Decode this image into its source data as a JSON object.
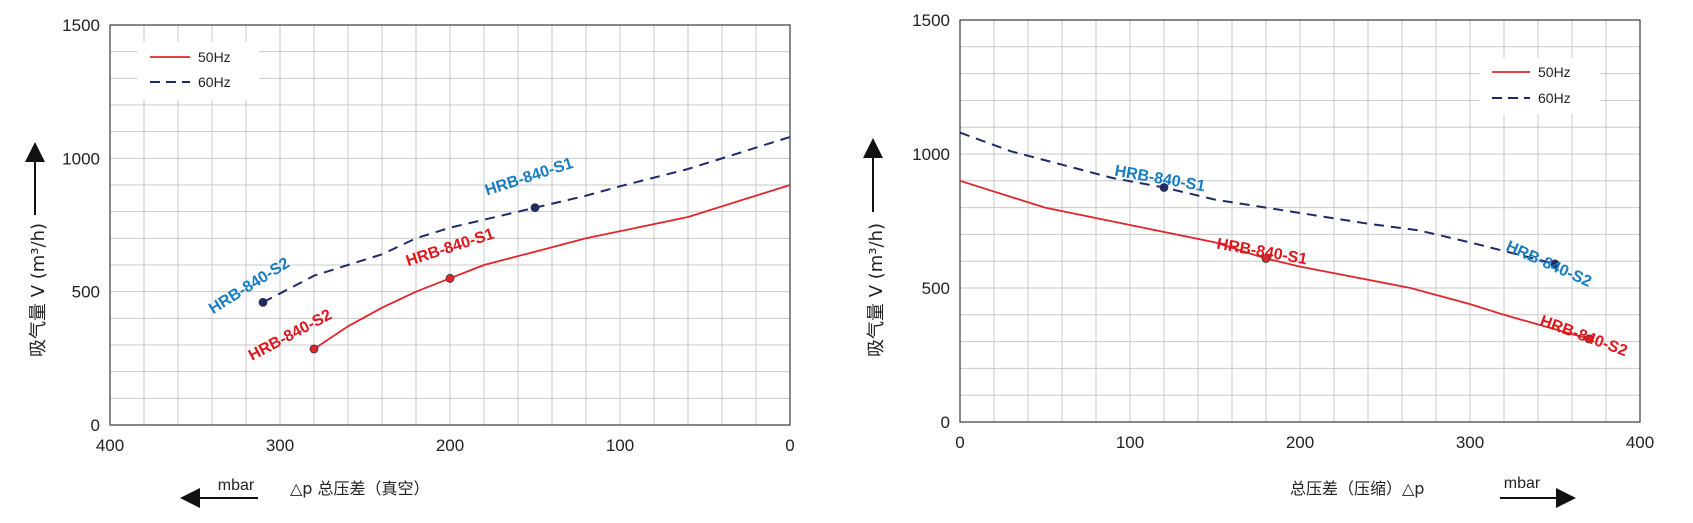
{
  "colors": {
    "hz50": "#e0262b",
    "hz60": "#1f2a6b",
    "label50": "#e0161c",
    "label60": "#1a7cc0"
  },
  "chart_data": [
    {
      "type": "line",
      "xlabel": "△p  总压差（真空）",
      "x_unit": "mbar",
      "ylabel": "吸气量 V (m³/h)",
      "xlim": [
        400,
        0
      ],
      "ylim": [
        0,
        1500
      ],
      "x_ticks": [
        "400",
        "300",
        "200",
        "100",
        "0"
      ],
      "y_ticks": [
        "0",
        "500",
        "1000",
        "1500"
      ],
      "grid": true,
      "legend": {
        "position": "top-left",
        "entries": [
          "50Hz",
          "60Hz"
        ]
      },
      "series": [
        {
          "name": "50Hz",
          "style": "solid",
          "x": [
            280,
            260,
            240,
            220,
            200,
            180,
            150,
            120,
            60,
            0
          ],
          "y": [
            285,
            370,
            440,
            500,
            550,
            600,
            650,
            700,
            780,
            900
          ]
        },
        {
          "name": "60Hz",
          "style": "dashed",
          "x": [
            310,
            280,
            260,
            240,
            220,
            200,
            180,
            150,
            120,
            100,
            60,
            0
          ],
          "y": [
            460,
            560,
            600,
            640,
            700,
            740,
            770,
            815,
            860,
            895,
            960,
            1080
          ]
        }
      ],
      "points": [
        {
          "label": "HRB-840-S1",
          "series": "60Hz",
          "x": 150,
          "y": 815
        },
        {
          "label": "HRB-840-S2",
          "series": "60Hz",
          "x": 310,
          "y": 460
        },
        {
          "label": "HRB-840-S1",
          "series": "50Hz",
          "x": 200,
          "y": 550
        },
        {
          "label": "HRB-840-S2",
          "series": "50Hz",
          "x": 280,
          "y": 285
        }
      ]
    },
    {
      "type": "line",
      "xlabel": "总压差（压缩）△p",
      "x_unit": "mbar",
      "ylabel": "吸气量 V (m³/h)",
      "xlim": [
        0,
        400
      ],
      "ylim": [
        0,
        1500
      ],
      "x_ticks": [
        "0",
        "100",
        "200",
        "300",
        "400"
      ],
      "y_ticks": [
        "0",
        "500",
        "1000",
        "1500"
      ],
      "grid": true,
      "legend": {
        "position": "top-right",
        "entries": [
          "50Hz",
          "60Hz"
        ]
      },
      "series": [
        {
          "name": "50Hz",
          "style": "solid",
          "x": [
            0,
            50,
            100,
            150,
            180,
            200,
            265,
            300,
            320,
            370
          ],
          "y": [
            900,
            800,
            735,
            670,
            610,
            580,
            500,
            440,
            400,
            310
          ]
        },
        {
          "name": "60Hz",
          "style": "dashed",
          "x": [
            0,
            30,
            60,
            90,
            120,
            150,
            180,
            200,
            240,
            270,
            300,
            350
          ],
          "y": [
            1080,
            1010,
            960,
            910,
            875,
            830,
            800,
            780,
            740,
            715,
            670,
            590
          ]
        }
      ],
      "points": [
        {
          "label": "HRB-840-S1",
          "series": "60Hz",
          "x": 120,
          "y": 875
        },
        {
          "label": "HRB-840-S2",
          "series": "60Hz",
          "x": 350,
          "y": 590
        },
        {
          "label": "HRB-840-S1",
          "series": "50Hz",
          "x": 180,
          "y": 610
        },
        {
          "label": "HRB-840-S2",
          "series": "50Hz",
          "x": 370,
          "y": 310
        }
      ]
    }
  ]
}
